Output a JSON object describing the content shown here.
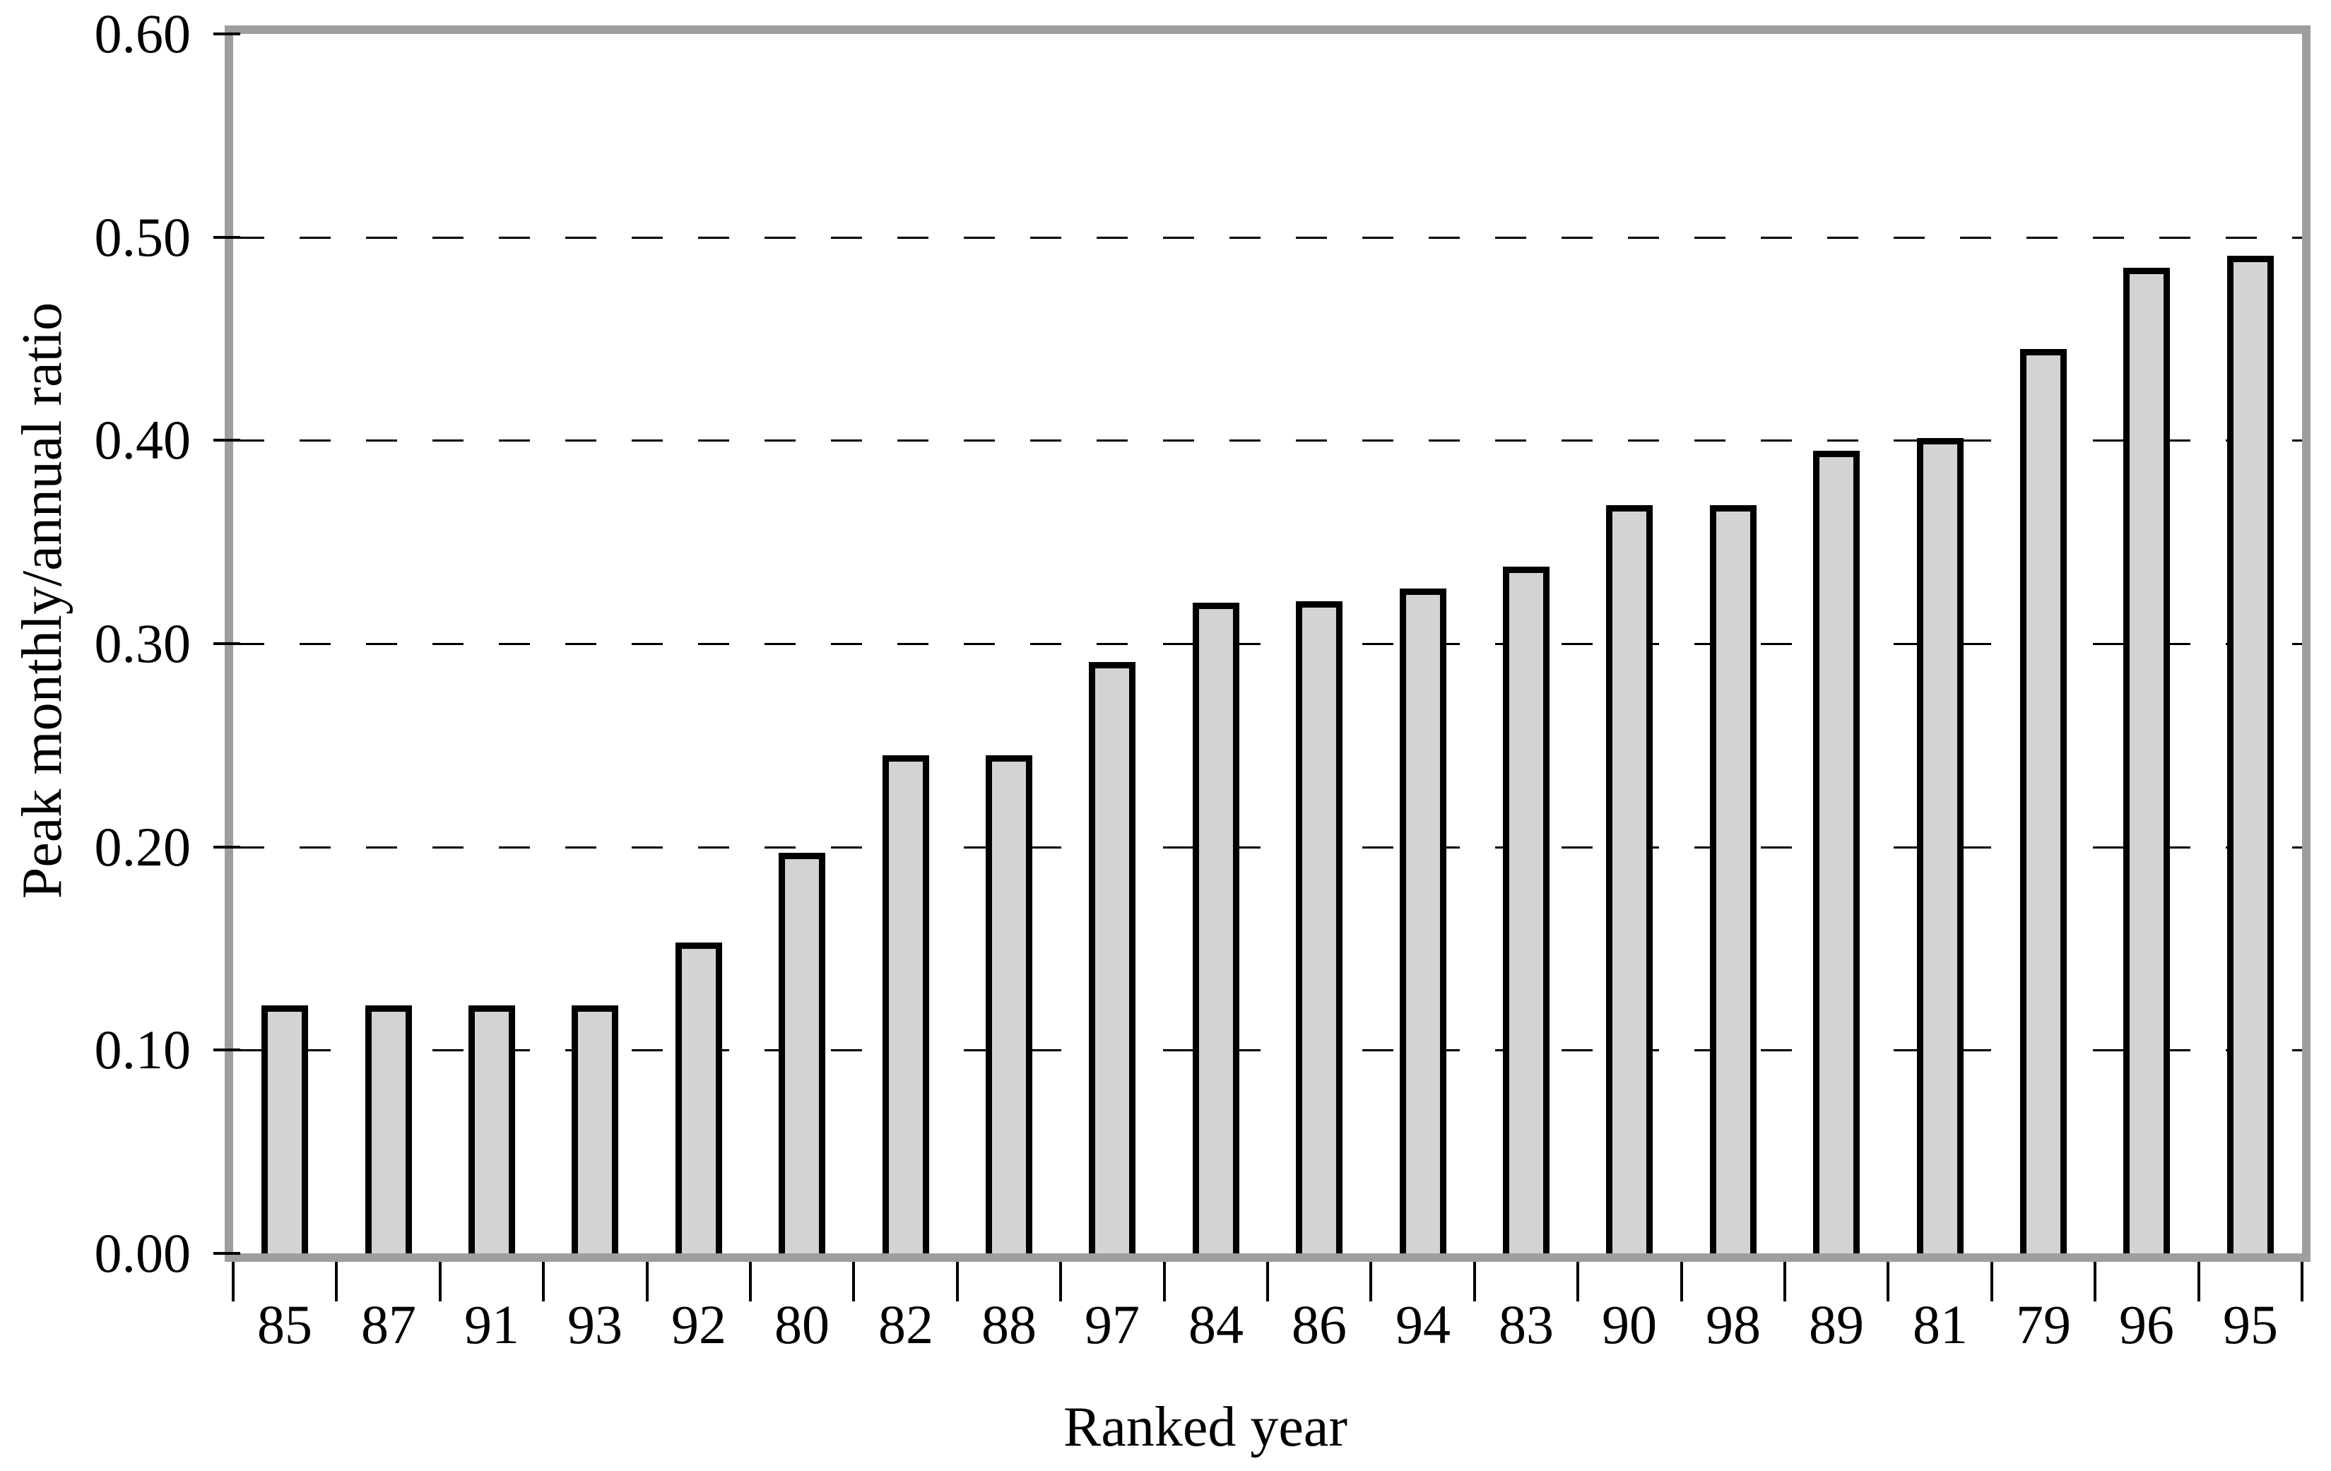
{
  "chart_data": {
    "type": "bar",
    "title": "",
    "xlabel": "Ranked year",
    "ylabel": "Peak monthly/annual ratio",
    "categories": [
      "85",
      "87",
      "91",
      "93",
      "92",
      "80",
      "82",
      "88",
      "97",
      "84",
      "86",
      "94",
      "83",
      "90",
      "98",
      "89",
      "81",
      "79",
      "96",
      "95"
    ],
    "values": [
      0.122,
      0.122,
      0.122,
      0.122,
      0.153,
      0.197,
      0.245,
      0.245,
      0.291,
      0.32,
      0.321,
      0.327,
      0.338,
      0.368,
      0.368,
      0.395,
      0.401,
      0.445,
      0.485,
      0.491
    ],
    "ylim": [
      0.0,
      0.6
    ],
    "ytick_step": 0.1,
    "ytick_labels": [
      "0.00",
      "0.10",
      "0.20",
      "0.30",
      "0.40",
      "0.50",
      "0.60"
    ],
    "grid": "horizontal-dashed",
    "legend": "none",
    "colors": {
      "bar_fill": "#d3d3d3",
      "bar_border": "#000000",
      "axis_frame": "#9e9e9e",
      "gridline": "#000000",
      "text": "#000000",
      "background": "#ffffff"
    }
  }
}
